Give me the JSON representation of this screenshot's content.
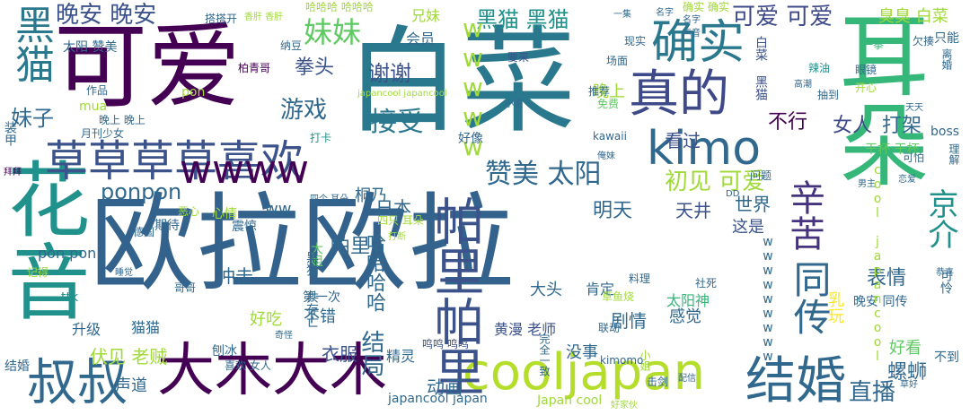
{
  "words": [
    "欧拉欧拉",
    "白菜",
    "耳朵",
    "可爱",
    "花音",
    "草草草草喜欢",
    "kimo",
    "wwww",
    "大木大木",
    "cooljapan",
    "帕里帕里",
    "确实",
    "真的",
    "结婚",
    "叔叔",
    "辛苦",
    "同传",
    "妹妹",
    "黑猫",
    "晚安 晚安",
    "黑猫 黑猫",
    "可爱 可爱",
    "wwwww",
    "接受",
    "游戏",
    "谢谢",
    "赞美 太阳",
    "妹子",
    "拳头",
    "直播",
    "初见 可爱",
    "ponpon",
    "看过",
    "打架",
    "女人",
    "不行",
    "日本",
    "明天",
    "天井",
    "帕里",
    "世界",
    "这是",
    "表情",
    "乳玩",
    "结局",
    "哈哈哈哈",
    "螺蛳",
    "好看",
    "剧情",
    "感觉",
    "大头",
    "肯定",
    "黄漫 老师",
    "没事",
    "动画",
    "精灵",
    "衣服",
    "声道",
    "伏见 老贼",
    "升级",
    "猫猫",
    "不错",
    "好吃",
    "冲击",
    "大姐",
    "第一次",
    "太阳神",
    "晚上",
    "臭臭 白菜",
    "兄妹",
    "会员",
    "太阳 赞美",
    "作品",
    "搭搭开",
    "纳豆",
    "柏青哥",
    "只能",
    "离婚",
    "眼镜",
    "开心",
    "抽到",
    "辣油",
    "一拳",
    "欠揍",
    "推荐",
    "免费",
    "现实",
    "场面",
    "要来",
    "kawaii",
    "好像",
    "打卡",
    "期待",
    "心情",
    "震惊",
    "恶心",
    "德国",
    "记得",
    "睡觉",
    "哥哥",
    "刨冰",
    "喜欢 女人",
    "结婚",
    "装甲",
    "桐乃",
    "问题",
    "可怕",
    "社死",
    "料理",
    "联动",
    "击剑",
    "晚安 同传",
    "干杯 干杯",
    "boss",
    "理解",
    "京介",
    "不到",
    "可怜",
    "鸣鸣 鸣鸣",
    "草鱼烧",
    "好家伙",
    "完全一致",
    "小姐",
    "japancool japan",
    "Japan cool",
    "ttk",
    "mua",
    "pon pon",
    "ww",
    "wwwwwwwww",
    "kimomo",
    "cool japancool",
    "月刊少女",
    "哈哈哈 哈哈哈",
    "香肝 香肝",
    "四个 耳朵",
    "四只 耳朵",
    "黑猫 共存亡",
    "晚上 晚上",
    "名字",
    "声音",
    "japancool japancool",
    "pon",
    "天天",
    "配信",
    "草好",
    "奇怪",
    "打断",
    "拜拜",
    "恭喜",
    "高潮",
    "俺妹",
    "白菜 黑猫",
    "确实 确实",
    "一集",
    "DD",
    "男主",
    "小说",
    "恋爱",
    "名字"
  ]
}
